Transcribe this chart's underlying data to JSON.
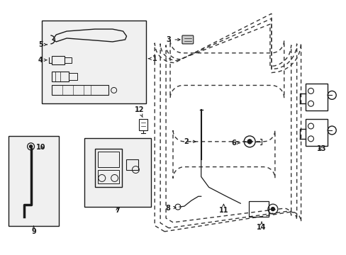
{
  "bg_color": "#ffffff",
  "line_color": "#1a1a1a",
  "dash_color": "#333333",
  "figsize": [
    4.89,
    3.6
  ],
  "dpi": 100,
  "label_fontsize": 7.0,
  "arrow_fontsize": 7.0
}
